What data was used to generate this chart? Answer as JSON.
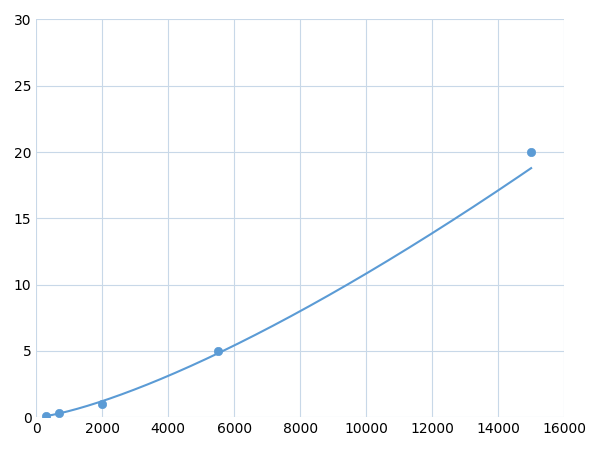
{
  "x_points": [
    300,
    700,
    2000,
    5500,
    15000
  ],
  "y_points": [
    0.1,
    0.3,
    1.0,
    5.0,
    20.0
  ],
  "line_color": "#5b9bd5",
  "marker_color": "#5b9bd5",
  "marker_size": 6,
  "marker_edge_color": "#5b9bd5",
  "line_width": 1.5,
  "xlim": [
    0,
    16000
  ],
  "ylim": [
    0,
    30
  ],
  "xticks": [
    0,
    2000,
    4000,
    6000,
    8000,
    10000,
    12000,
    14000,
    16000
  ],
  "yticks": [
    0,
    5,
    10,
    15,
    20,
    25,
    30
  ],
  "grid_color": "#c8d8e8",
  "background_color": "#ffffff",
  "figsize": [
    6.0,
    4.5
  ],
  "dpi": 100
}
